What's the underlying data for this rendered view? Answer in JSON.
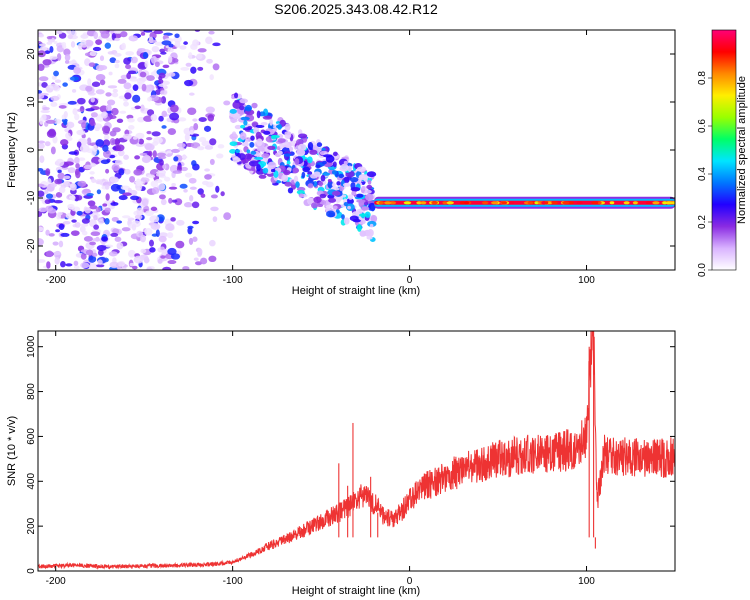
{
  "title": "S206.2025.343.08.42.R12",
  "chart_data": [
    {
      "type": "heatmap",
      "xlabel": "Height of straight line (km)",
      "ylabel": "Frequency (Hz)",
      "xlim": [
        -210,
        150
      ],
      "ylim": [
        -25,
        25
      ],
      "xticks": [
        -200,
        -100,
        0,
        100
      ],
      "yticks": [
        -20,
        -10,
        0,
        10,
        20
      ],
      "colorbar": {
        "label": "Normalized spectral amplitude",
        "range": [
          0,
          1
        ],
        "ticks": [
          0.0,
          0.2,
          0.4,
          0.6,
          0.8
        ],
        "colors": [
          "#ffffff",
          "#d9b3ff",
          "#8a2be2",
          "#2200ff",
          "#0077ff",
          "#00e5ff",
          "#00ff66",
          "#9aff00",
          "#ffee00",
          "#ff8800",
          "#ff0000",
          "#ff0077"
        ]
      },
      "features": [
        {
          "name": "noise region",
          "x_range": [
            -210,
            -100
          ],
          "freq_range": [
            -25,
            25
          ],
          "amplitude": 0.1
        },
        {
          "name": "dispersed arrivals",
          "x_range": [
            -100,
            -20
          ],
          "freq_start": 5,
          "freq_end": -12,
          "amplitude": 0.3
        },
        {
          "name": "steady tone",
          "x_range": [
            -20,
            150
          ],
          "freq": -11,
          "amplitude": 0.95
        }
      ]
    },
    {
      "type": "line",
      "xlabel": "Height of straight line (km)",
      "ylabel": "SNR (10 * v/v)",
      "xlim": [
        -210,
        150
      ],
      "ylim": [
        0,
        1070
      ],
      "xticks": [
        -200,
        -100,
        0,
        100
      ],
      "yticks": [
        0,
        200,
        400,
        600,
        800,
        1000
      ],
      "color": "#ee3333",
      "series": [
        {
          "name": "SNR",
          "x": [
            -210,
            -190,
            -170,
            -150,
            -130,
            -110,
            -100,
            -90,
            -80,
            -70,
            -60,
            -50,
            -40,
            -30,
            -25,
            -20,
            -15,
            -10,
            -5,
            0,
            10,
            20,
            30,
            40,
            50,
            60,
            70,
            80,
            90,
            95,
            100,
            102,
            104,
            106,
            110,
            120,
            130,
            140,
            150
          ],
          "values": [
            20,
            25,
            20,
            22,
            25,
            30,
            40,
            70,
            110,
            140,
            180,
            220,
            260,
            310,
            350,
            300,
            250,
            230,
            260,
            320,
            380,
            420,
            450,
            470,
            500,
            510,
            520,
            530,
            540,
            560,
            600,
            950,
            1060,
            300,
            520,
            510,
            505,
            500,
            510
          ]
        }
      ],
      "spikes": [
        {
          "x": -40,
          "y": 480
        },
        {
          "x": -35,
          "y": 380
        },
        {
          "x": -32,
          "y": 660
        },
        {
          "x": -22,
          "y": 420
        },
        {
          "x": -18,
          "y": 260
        },
        {
          "x": 101.5,
          "y": 1000
        },
        {
          "x": 104,
          "y": 1070
        },
        {
          "x": 105,
          "y": 100
        }
      ]
    }
  ]
}
